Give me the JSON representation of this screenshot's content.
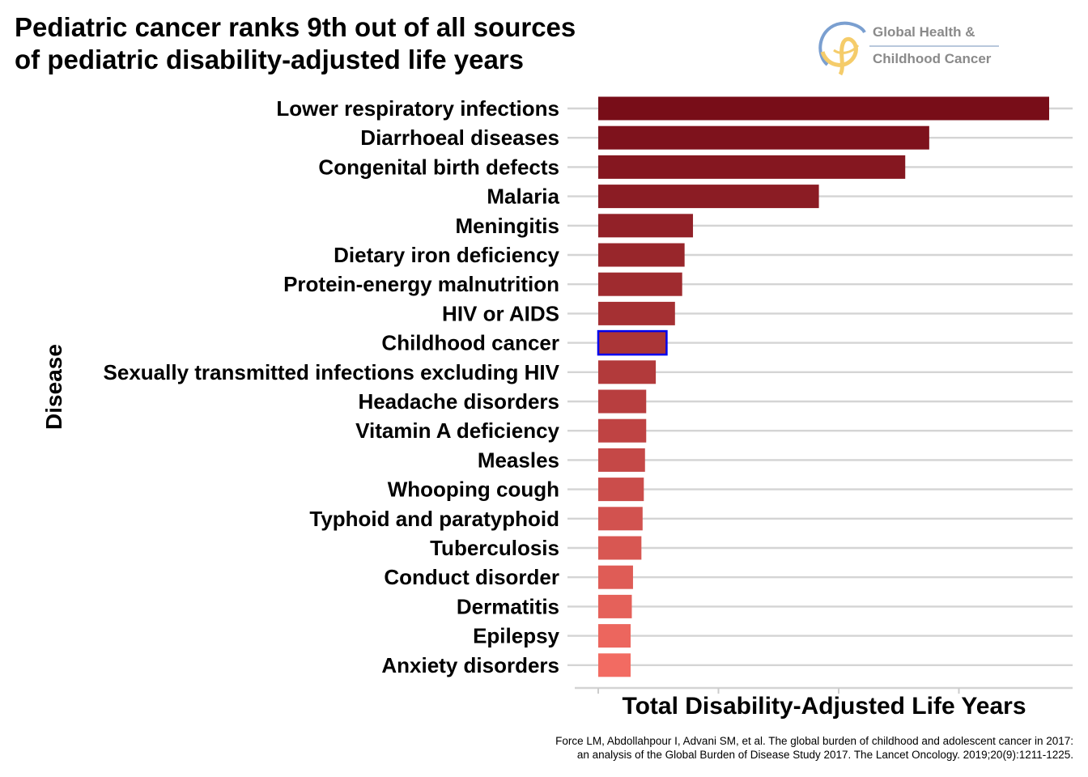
{
  "title_line1": "Pediatric cancer ranks 9th out of all sources",
  "title_line2": "of pediatric disability-adjusted life years",
  "logo": {
    "line1": "Global Health &",
    "line2": "Childhood Cancer",
    "icon": "ribbon-swirl-logo"
  },
  "citation_line1": "Force LM, Abdollahpour I, Advani SM, et al. The global burden of childhood and adolescent cancer in 2017:",
  "citation_line2": "an analysis of the Global Burden of Disease Study 2017. The Lancet Oncology. 2019;20(9):1211-1225.",
  "colors": {
    "highlight_border": "#0000ee",
    "dark": "#780d18",
    "light": "#f26b62",
    "grid": "#d4d4d4"
  },
  "chart_data": {
    "type": "bar",
    "orientation": "horizontal",
    "title": "Pediatric cancer ranks 9th out of all sources of pediatric disability-adjusted life years",
    "xlabel": "Total Disability-Adjusted Life Years",
    "ylabel": "Disease",
    "x_tick_labels_visible": false,
    "grid": true,
    "legend": "none",
    "highlighted_category": "Childhood cancer",
    "categories": [
      "Lower respiratory infections",
      "Diarrhoeal diseases",
      "Congenital birth defects",
      "Malaria",
      "Meningitis",
      "Dietary iron deficiency",
      "Protein-energy malnutrition",
      "HIV or AIDS",
      "Childhood cancer",
      "Sexually transmitted infections excluding HIV",
      "Headache disorders",
      "Vitamin A deficiency",
      "Measles",
      "Whooping cough",
      "Typhoid and paratyphoid",
      "Tuberculosis",
      "Conduct disorder",
      "Dermatitis",
      "Epilepsy",
      "Anxiety disorders"
    ],
    "values": [
      3.76,
      2.76,
      2.56,
      1.84,
      0.79,
      0.72,
      0.7,
      0.64,
      0.57,
      0.48,
      0.4,
      0.4,
      0.39,
      0.38,
      0.37,
      0.36,
      0.29,
      0.28,
      0.27,
      0.27
    ],
    "xlim": [
      0,
      3.96
    ]
  }
}
